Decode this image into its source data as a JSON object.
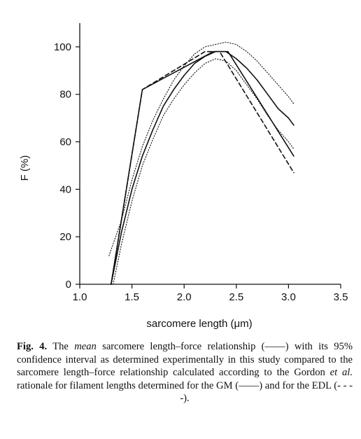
{
  "chart_data": {
    "type": "line",
    "xlabel": "sarcomere length (μm)",
    "ylabel": "F (%)",
    "xlim": [
      1.0,
      3.5
    ],
    "ylim": [
      0,
      110
    ],
    "xticks": [
      "1.0",
      "1.5",
      "2.0",
      "2.5",
      "3.0",
      "3.5"
    ],
    "yticks": [
      "0",
      "20",
      "40",
      "60",
      "80",
      "100"
    ],
    "grid": false,
    "legend": "none (described in caption)",
    "series": [
      {
        "key": "mean",
        "style": "solid",
        "x": [
          1.3,
          1.4,
          1.5,
          1.6,
          1.7,
          1.8,
          1.9,
          2.0,
          2.1,
          2.2,
          2.3,
          2.4,
          2.5,
          2.6,
          2.7,
          2.8,
          2.9,
          3.0,
          3.05
        ],
        "y": [
          0,
          22,
          40,
          54,
          65,
          75,
          82,
          88,
          93,
          96,
          98,
          98,
          95,
          91,
          86,
          80,
          74,
          70,
          67
        ]
      },
      {
        "key": "ci-upper",
        "style": "dotted",
        "x": [
          1.28,
          1.4,
          1.5,
          1.6,
          1.7,
          1.8,
          1.9,
          2.0,
          2.1,
          2.2,
          2.3,
          2.4,
          2.5,
          2.6,
          2.7,
          2.8,
          2.9,
          3.0,
          3.05
        ],
        "y": [
          12,
          27,
          44,
          58,
          69,
          78,
          86,
          92,
          97,
          100,
          101,
          102,
          101,
          98,
          94,
          89,
          84,
          79,
          76
        ]
      },
      {
        "key": "ci-lower",
        "style": "dotted",
        "x": [
          1.32,
          1.4,
          1.5,
          1.6,
          1.7,
          1.8,
          1.9,
          2.0,
          2.1,
          2.2,
          2.3,
          2.4,
          2.5,
          2.6,
          2.7,
          2.8,
          2.9,
          3.0,
          3.05
        ],
        "y": [
          0,
          17,
          35,
          50,
          61,
          71,
          78,
          84,
          89,
          93,
          95,
          94,
          90,
          84,
          78,
          71,
          65,
          60,
          57
        ]
      },
      {
        "key": "GM",
        "style": "solid",
        "x": [
          1.3,
          1.6,
          2.28,
          2.42,
          3.05
        ],
        "y": [
          0,
          82,
          98,
          98,
          54
        ]
      },
      {
        "key": "EDL",
        "style": "dashed",
        "x": [
          1.3,
          1.6,
          2.2,
          2.34,
          3.05
        ],
        "y": [
          0,
          82,
          98,
          98,
          47
        ]
      }
    ]
  },
  "caption": {
    "fig_label": "Fig. 4.",
    "t1": " The ",
    "mean_word": "mean",
    "t2": " sarcomere length–force relationship (——) with its 95% confidence interval as determined experimentally in this study compared to the sarcomere length–force relationship calculated according to the Gordon ",
    "et_al": "et al.",
    "t3": " rationale for filament lengths determined for the GM (——) and for the EDL (- - - -)."
  }
}
